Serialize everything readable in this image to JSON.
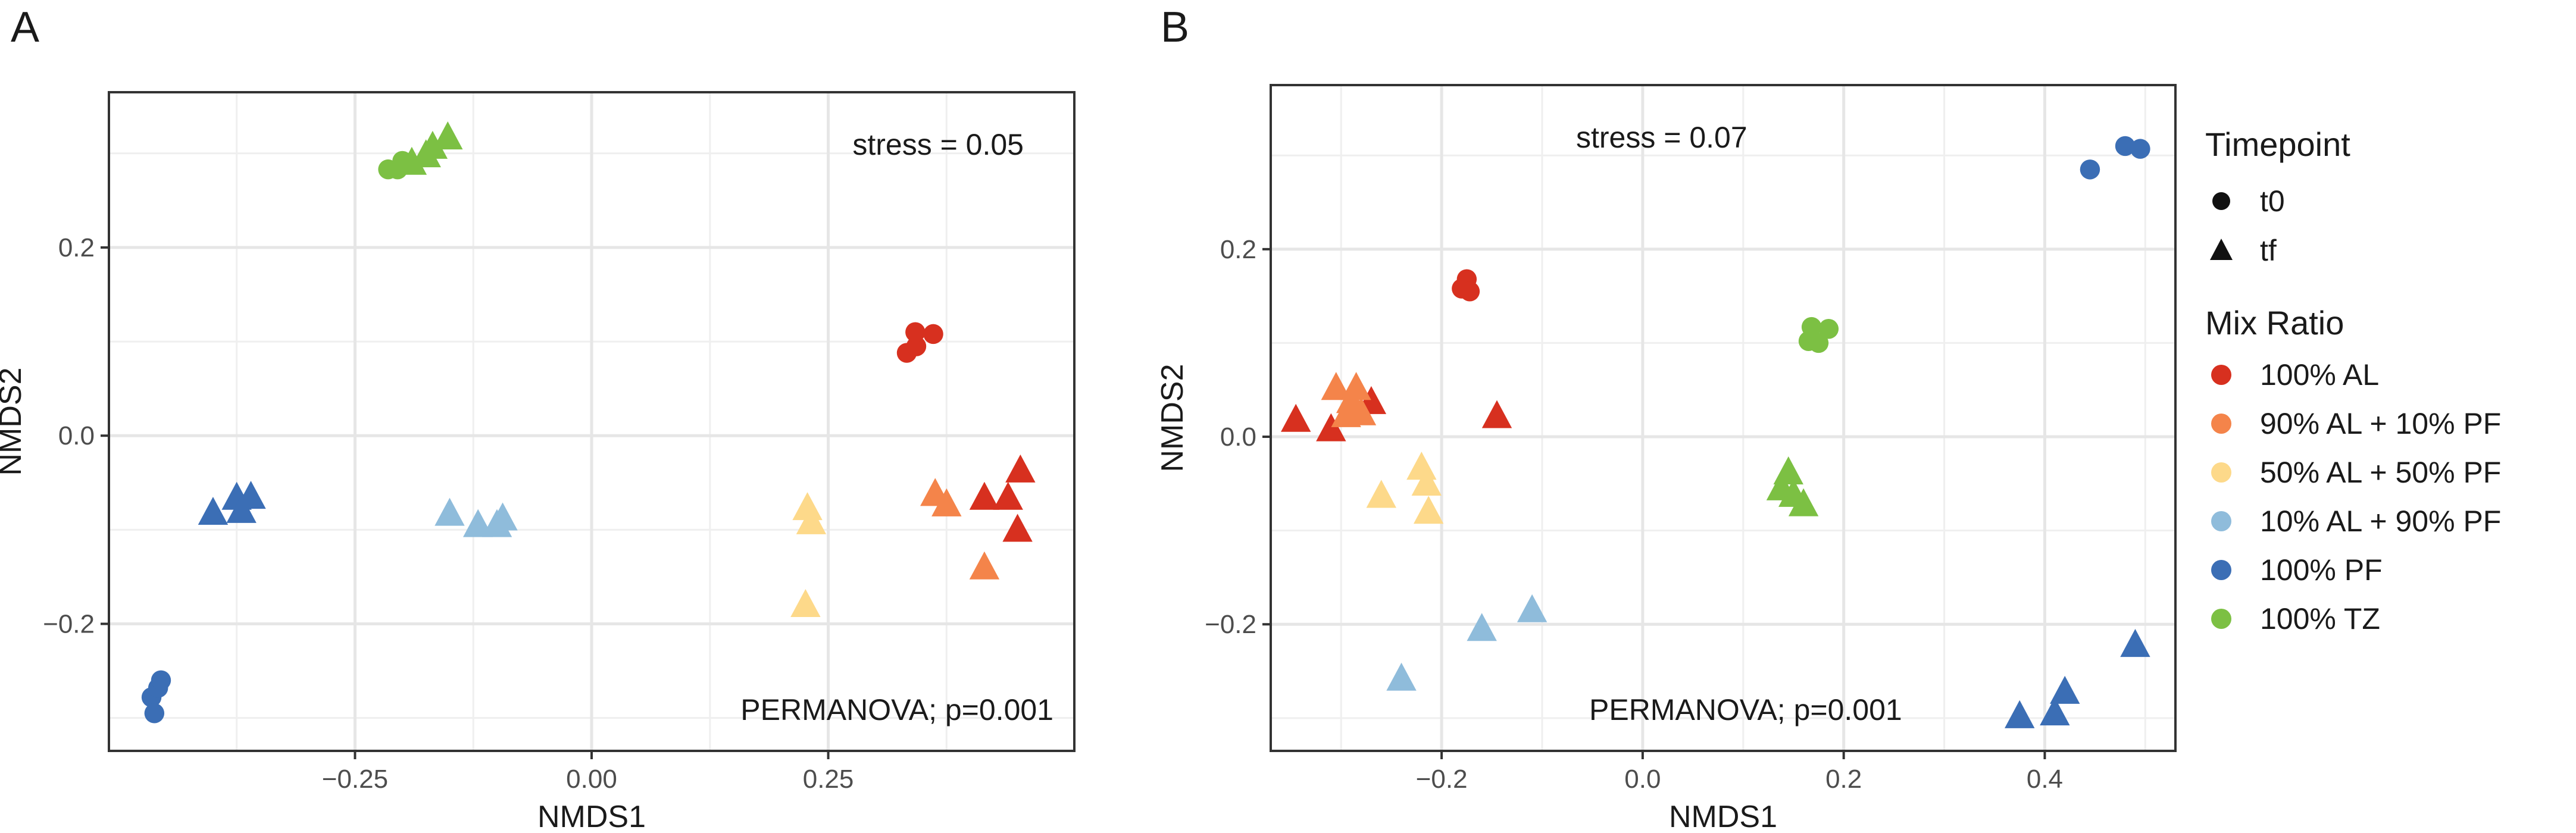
{
  "figure": {
    "panel_a_label": "A",
    "panel_b_label": "B"
  },
  "colors": {
    "100% AL": "#d7301f",
    "90% AL + 10% PF": "#f4844a",
    "50% AL + 50% PF": "#fdd98a",
    "10% AL + 90% PF": "#8fbcdb",
    "100% PF": "#3b6eb5",
    "100% TZ": "#7cc043",
    "grid": "#e6e6e6",
    "border": "#333333",
    "text": "#1a1a1a",
    "tick_text": "#4d4d4d"
  },
  "legend": {
    "shape_title": "Timepoint",
    "shapes": [
      {
        "label": "t0",
        "shape": "circle-icon"
      },
      {
        "label": "tf",
        "shape": "triangle-icon"
      }
    ],
    "color_title": "Mix Ratio",
    "groups": [
      "100% AL",
      "90% AL + 10% PF",
      "50% AL + 50% PF",
      "10% AL + 90% PF",
      "100% PF",
      "100% TZ"
    ]
  },
  "chart_data": [
    {
      "type": "scatter",
      "panel": "A",
      "title": "",
      "xlabel": "NMDS1",
      "ylabel": "NMDS2",
      "xlim": [
        -0.51,
        0.51
      ],
      "ylim": [
        -0.335,
        0.365
      ],
      "xticks": [
        -0.25,
        0.0,
        0.25
      ],
      "xtick_labels": [
        "−0.25",
        "0.00",
        "0.25"
      ],
      "yticks": [
        -0.2,
        0.0,
        0.2
      ],
      "ytick_labels": [
        "−0.2",
        "0.0",
        "0.2"
      ],
      "annotations": [
        {
          "name": "stress-annotation",
          "text": "stress = 0.05",
          "x": 0.34,
          "y": 0.29
        },
        {
          "name": "permanova-annotation",
          "text": "PERMANOVA; p=0.001",
          "x": 0.3,
          "y": -0.3
        }
      ],
      "points": [
        {
          "group": "100% TZ",
          "timepoint": "t0",
          "x": -0.215,
          "y": 0.283
        },
        {
          "group": "100% TZ",
          "timepoint": "t0",
          "x": -0.205,
          "y": 0.283
        },
        {
          "group": "100% TZ",
          "timepoint": "t0",
          "x": -0.2,
          "y": 0.292
        },
        {
          "group": "100% TZ",
          "timepoint": "tf",
          "x": -0.19,
          "y": 0.29
        },
        {
          "group": "100% TZ",
          "timepoint": "tf",
          "x": -0.175,
          "y": 0.298
        },
        {
          "group": "100% TZ",
          "timepoint": "tf",
          "x": -0.168,
          "y": 0.307
        },
        {
          "group": "100% TZ",
          "timepoint": "tf",
          "x": -0.152,
          "y": 0.317
        },
        {
          "group": "100% AL",
          "timepoint": "t0",
          "x": 0.333,
          "y": 0.088
        },
        {
          "group": "100% AL",
          "timepoint": "t0",
          "x": 0.343,
          "y": 0.095
        },
        {
          "group": "100% AL",
          "timepoint": "t0",
          "x": 0.342,
          "y": 0.11
        },
        {
          "group": "100% AL",
          "timepoint": "t0",
          "x": 0.361,
          "y": 0.108
        },
        {
          "group": "100% AL",
          "timepoint": "tf",
          "x": 0.415,
          "y": -0.066
        },
        {
          "group": "100% AL",
          "timepoint": "tf",
          "x": 0.44,
          "y": -0.066
        },
        {
          "group": "100% AL",
          "timepoint": "tf",
          "x": 0.453,
          "y": -0.037
        },
        {
          "group": "100% AL",
          "timepoint": "tf",
          "x": 0.45,
          "y": -0.1
        },
        {
          "group": "90% AL + 10% PF",
          "timepoint": "tf",
          "x": 0.363,
          "y": -0.062
        },
        {
          "group": "90% AL + 10% PF",
          "timepoint": "tf",
          "x": 0.375,
          "y": -0.073
        },
        {
          "group": "90% AL + 10% PF",
          "timepoint": "tf",
          "x": 0.415,
          "y": -0.14
        },
        {
          "group": "50% AL + 50% PF",
          "timepoint": "tf",
          "x": 0.228,
          "y": -0.077
        },
        {
          "group": "50% AL + 50% PF",
          "timepoint": "tf",
          "x": 0.232,
          "y": -0.092
        },
        {
          "group": "50% AL + 50% PF",
          "timepoint": "tf",
          "x": 0.226,
          "y": -0.18
        },
        {
          "group": "10% AL + 90% PF",
          "timepoint": "tf",
          "x": -0.15,
          "y": -0.083
        },
        {
          "group": "10% AL + 90% PF",
          "timepoint": "tf",
          "x": -0.12,
          "y": -0.095
        },
        {
          "group": "10% AL + 90% PF",
          "timepoint": "tf",
          "x": -0.1,
          "y": -0.095
        },
        {
          "group": "10% AL + 90% PF",
          "timepoint": "tf",
          "x": -0.094,
          "y": -0.088
        },
        {
          "group": "100% PF",
          "timepoint": "tf",
          "x": -0.4,
          "y": -0.082
        },
        {
          "group": "100% PF",
          "timepoint": "tf",
          "x": -0.375,
          "y": -0.066
        },
        {
          "group": "100% PF",
          "timepoint": "tf",
          "x": -0.37,
          "y": -0.08
        },
        {
          "group": "100% PF",
          "timepoint": "tf",
          "x": -0.36,
          "y": -0.065
        },
        {
          "group": "100% PF",
          "timepoint": "t0",
          "x": -0.465,
          "y": -0.278
        },
        {
          "group": "100% PF",
          "timepoint": "t0",
          "x": -0.458,
          "y": -0.268
        },
        {
          "group": "100% PF",
          "timepoint": "t0",
          "x": -0.455,
          "y": -0.26
        },
        {
          "group": "100% PF",
          "timepoint": "t0",
          "x": -0.462,
          "y": -0.295
        }
      ]
    },
    {
      "type": "scatter",
      "panel": "B",
      "title": "",
      "xlabel": "NMDS1",
      "ylabel": "NMDS2",
      "xlim": [
        -0.37,
        0.53
      ],
      "ylim": [
        -0.335,
        0.375
      ],
      "xticks": [
        -0.2,
        0.0,
        0.2,
        0.4
      ],
      "xtick_labels": [
        "−0.2",
        "0.0",
        "0.2",
        "0.4"
      ],
      "yticks": [
        -0.2,
        0.0,
        0.2
      ],
      "ytick_labels": [
        "−0.2",
        "0.0",
        "0.2"
      ],
      "annotations": [
        {
          "name": "stress-annotation",
          "text": "stress = 0.07",
          "x": -0.065,
          "y": 0.31
        },
        {
          "name": "permanova-annotation",
          "text": "PERMANOVA; p=0.001",
          "x": 0.02,
          "y": -0.298
        }
      ],
      "points": [
        {
          "group": "100% PF",
          "timepoint": "t0",
          "x": 0.445,
          "y": 0.285
        },
        {
          "group": "100% PF",
          "timepoint": "t0",
          "x": 0.48,
          "y": 0.31
        },
        {
          "group": "100% PF",
          "timepoint": "t0",
          "x": 0.495,
          "y": 0.307
        },
        {
          "group": "100% AL",
          "timepoint": "t0",
          "x": -0.18,
          "y": 0.158
        },
        {
          "group": "100% AL",
          "timepoint": "t0",
          "x": -0.175,
          "y": 0.168
        },
        {
          "group": "100% AL",
          "timepoint": "t0",
          "x": -0.172,
          "y": 0.155
        },
        {
          "group": "100% TZ",
          "timepoint": "t0",
          "x": 0.165,
          "y": 0.102
        },
        {
          "group": "100% TZ",
          "timepoint": "t0",
          "x": 0.168,
          "y": 0.117
        },
        {
          "group": "100% TZ",
          "timepoint": "t0",
          "x": 0.175,
          "y": 0.1
        },
        {
          "group": "100% TZ",
          "timepoint": "t0",
          "x": 0.185,
          "y": 0.115
        },
        {
          "group": "100% AL",
          "timepoint": "tf",
          "x": -0.345,
          "y": 0.018
        },
        {
          "group": "100% AL",
          "timepoint": "tf",
          "x": -0.31,
          "y": 0.008
        },
        {
          "group": "100% AL",
          "timepoint": "tf",
          "x": -0.27,
          "y": 0.037
        },
        {
          "group": "100% AL",
          "timepoint": "tf",
          "x": -0.145,
          "y": 0.022
        },
        {
          "group": "90% AL + 10% PF",
          "timepoint": "tf",
          "x": -0.305,
          "y": 0.052
        },
        {
          "group": "90% AL + 10% PF",
          "timepoint": "tf",
          "x": -0.29,
          "y": 0.038
        },
        {
          "group": "90% AL + 10% PF",
          "timepoint": "tf",
          "x": -0.285,
          "y": 0.052
        },
        {
          "group": "90% AL + 10% PF",
          "timepoint": "tf",
          "x": -0.295,
          "y": 0.023
        },
        {
          "group": "90% AL + 10% PF",
          "timepoint": "tf",
          "x": -0.28,
          "y": 0.025
        },
        {
          "group": "50% AL + 50% PF",
          "timepoint": "tf",
          "x": -0.22,
          "y": -0.033
        },
        {
          "group": "50% AL + 50% PF",
          "timepoint": "tf",
          "x": -0.215,
          "y": -0.05
        },
        {
          "group": "50% AL + 50% PF",
          "timepoint": "tf",
          "x": -0.26,
          "y": -0.063
        },
        {
          "group": "50% AL + 50% PF",
          "timepoint": "tf",
          "x": -0.213,
          "y": -0.08
        },
        {
          "group": "100% TZ",
          "timepoint": "tf",
          "x": 0.145,
          "y": -0.038
        },
        {
          "group": "100% TZ",
          "timepoint": "tf",
          "x": 0.138,
          "y": -0.055
        },
        {
          "group": "100% TZ",
          "timepoint": "tf",
          "x": 0.15,
          "y": -0.062
        },
        {
          "group": "100% TZ",
          "timepoint": "tf",
          "x": 0.16,
          "y": -0.072
        },
        {
          "group": "10% AL + 90% PF",
          "timepoint": "tf",
          "x": -0.16,
          "y": -0.205
        },
        {
          "group": "10% AL + 90% PF",
          "timepoint": "tf",
          "x": -0.11,
          "y": -0.185
        },
        {
          "group": "10% AL + 90% PF",
          "timepoint": "tf",
          "x": -0.24,
          "y": -0.258
        },
        {
          "group": "100% PF",
          "timepoint": "tf",
          "x": 0.49,
          "y": -0.222
        },
        {
          "group": "100% PF",
          "timepoint": "tf",
          "x": 0.42,
          "y": -0.272
        },
        {
          "group": "100% PF",
          "timepoint": "tf",
          "x": 0.375,
          "y": -0.298
        },
        {
          "group": "100% PF",
          "timepoint": "tf",
          "x": 0.41,
          "y": -0.295
        }
      ]
    }
  ]
}
